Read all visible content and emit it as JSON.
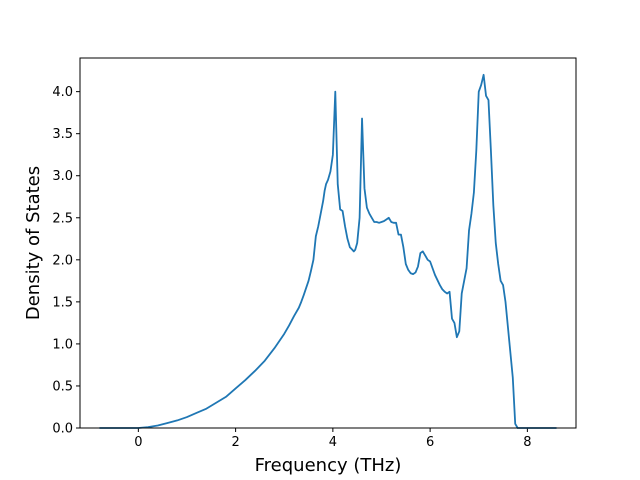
{
  "chart_data": {
    "type": "line",
    "title": "",
    "xlabel": "Frequency (THz)",
    "ylabel": "Density of States",
    "xlim": [
      -1.2,
      9.0
    ],
    "ylim": [
      0.0,
      4.4
    ],
    "xticks": [
      0,
      2,
      4,
      6,
      8
    ],
    "xtick_labels": [
      "0",
      "2",
      "4",
      "6",
      "8"
    ],
    "yticks": [
      0.0,
      0.5,
      1.0,
      1.5,
      2.0,
      2.5,
      3.0,
      3.5,
      4.0
    ],
    "ytick_labels": [
      "0.0",
      "0.5",
      "1.0",
      "1.5",
      "2.0",
      "2.5",
      "3.0",
      "3.5",
      "4.0"
    ],
    "grid": false,
    "legend": "none",
    "series": [
      {
        "color": "#1f77b4",
        "x": [
          -0.8,
          -0.4,
          0.0,
          0.2,
          0.4,
          0.6,
          0.8,
          1.0,
          1.2,
          1.4,
          1.6,
          1.8,
          2.0,
          2.2,
          2.4,
          2.6,
          2.8,
          3.0,
          3.1,
          3.2,
          3.3,
          3.35,
          3.4,
          3.5,
          3.55,
          3.6,
          3.65,
          3.7,
          3.75,
          3.8,
          3.83,
          3.86,
          3.9,
          3.95,
          4.0,
          4.05,
          4.1,
          4.15,
          4.2,
          4.25,
          4.3,
          4.35,
          4.4,
          4.43,
          4.46,
          4.5,
          4.55,
          4.6,
          4.65,
          4.7,
          4.75,
          4.8,
          4.85,
          4.9,
          4.95,
          5.0,
          5.05,
          5.1,
          5.15,
          5.2,
          5.25,
          5.3,
          5.35,
          5.4,
          5.45,
          5.5,
          5.55,
          5.6,
          5.65,
          5.7,
          5.75,
          5.8,
          5.85,
          5.9,
          5.95,
          6.0,
          6.1,
          6.2,
          6.25,
          6.3,
          6.35,
          6.4,
          6.45,
          6.5,
          6.55,
          6.6,
          6.65,
          6.7,
          6.75,
          6.8,
          6.85,
          6.9,
          6.95,
          7.0,
          7.05,
          7.1,
          7.15,
          7.2,
          7.25,
          7.3,
          7.35,
          7.4,
          7.45,
          7.5,
          7.55,
          7.6,
          7.65,
          7.7,
          7.75,
          7.8,
          7.85,
          8.0,
          8.3,
          8.6
        ],
        "y": [
          0.0,
          0.0,
          0.0,
          0.01,
          0.03,
          0.06,
          0.09,
          0.13,
          0.18,
          0.23,
          0.3,
          0.37,
          0.47,
          0.57,
          0.68,
          0.8,
          0.95,
          1.12,
          1.22,
          1.33,
          1.43,
          1.5,
          1.58,
          1.75,
          1.87,
          2.0,
          2.28,
          2.4,
          2.55,
          2.7,
          2.82,
          2.9,
          2.95,
          3.05,
          3.25,
          4.0,
          2.9,
          2.6,
          2.58,
          2.4,
          2.25,
          2.15,
          2.12,
          2.1,
          2.12,
          2.2,
          2.5,
          3.68,
          2.85,
          2.62,
          2.55,
          2.5,
          2.45,
          2.45,
          2.44,
          2.45,
          2.46,
          2.48,
          2.5,
          2.45,
          2.44,
          2.44,
          2.3,
          2.3,
          2.15,
          1.95,
          1.88,
          1.84,
          1.83,
          1.85,
          1.92,
          2.08,
          2.1,
          2.05,
          2.0,
          1.98,
          1.82,
          1.7,
          1.65,
          1.62,
          1.6,
          1.62,
          1.3,
          1.25,
          1.08,
          1.15,
          1.6,
          1.75,
          1.9,
          2.35,
          2.55,
          2.8,
          3.3,
          4.0,
          4.08,
          4.2,
          3.95,
          3.9,
          3.3,
          2.65,
          2.2,
          1.95,
          1.75,
          1.7,
          1.5,
          1.2,
          0.9,
          0.6,
          0.05,
          0.0,
          0.0,
          0.0,
          0.0,
          0.0
        ]
      }
    ]
  }
}
